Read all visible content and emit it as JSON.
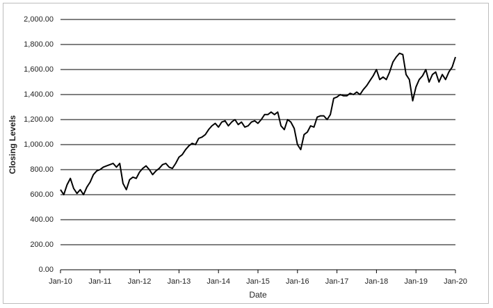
{
  "chart_data": {
    "type": "line",
    "title": "",
    "xlabel": "Date",
    "ylabel": "Closing Levels",
    "ylim": [
      0,
      2000
    ],
    "yticks": [
      "0.00",
      "200.00",
      "400.00",
      "600.00",
      "800.00",
      "1,000.00",
      "1,200.00",
      "1,400.00",
      "1,600.00",
      "1,800.00",
      "2,000.00"
    ],
    "xlim": [
      "2010-01",
      "2020-01"
    ],
    "xticks": [
      "Jan-10",
      "Jan-11",
      "Jan-12",
      "Jan-13",
      "Jan-14",
      "Jan-15",
      "Jan-16",
      "Jan-17",
      "Jan-18",
      "Jan-19",
      "Jan-20"
    ],
    "grid": "horizontal",
    "legend": "none",
    "line_color": "#000000",
    "series": [
      {
        "x": [
          "2010-01",
          "2010-02",
          "2010-03",
          "2010-04",
          "2010-05",
          "2010-06",
          "2010-07",
          "2010-08",
          "2010-09",
          "2010-10",
          "2010-11",
          "2010-12",
          "2011-01",
          "2011-02",
          "2011-03",
          "2011-04",
          "2011-05",
          "2011-06",
          "2011-07",
          "2011-08",
          "2011-09",
          "2011-10",
          "2011-11",
          "2011-12",
          "2012-01",
          "2012-02",
          "2012-03",
          "2012-04",
          "2012-05",
          "2012-06",
          "2012-07",
          "2012-08",
          "2012-09",
          "2012-10",
          "2012-11",
          "2012-12",
          "2013-01",
          "2013-02",
          "2013-03",
          "2013-04",
          "2013-05",
          "2013-06",
          "2013-07",
          "2013-08",
          "2013-09",
          "2013-10",
          "2013-11",
          "2013-12",
          "2014-01",
          "2014-02",
          "2014-03",
          "2014-04",
          "2014-05",
          "2014-06",
          "2014-07",
          "2014-08",
          "2014-09",
          "2014-10",
          "2014-11",
          "2014-12",
          "2015-01",
          "2015-02",
          "2015-03",
          "2015-04",
          "2015-05",
          "2015-06",
          "2015-07",
          "2015-08",
          "2015-09",
          "2015-10",
          "2015-11",
          "2015-12",
          "2016-01",
          "2016-02",
          "2016-03",
          "2016-04",
          "2016-05",
          "2016-06",
          "2016-07",
          "2016-08",
          "2016-09",
          "2016-10",
          "2016-11",
          "2016-12",
          "2017-01",
          "2017-02",
          "2017-03",
          "2017-04",
          "2017-05",
          "2017-06",
          "2017-07",
          "2017-08",
          "2017-09",
          "2017-10",
          "2017-11",
          "2017-12",
          "2018-01",
          "2018-02",
          "2018-03",
          "2018-04",
          "2018-05",
          "2018-06",
          "2018-07",
          "2018-08",
          "2018-09",
          "2018-10",
          "2018-11",
          "2018-12",
          "2019-01",
          "2019-02",
          "2019-03",
          "2019-04",
          "2019-05",
          "2019-06",
          "2019-07",
          "2019-08",
          "2019-09",
          "2019-10",
          "2019-11",
          "2019-12",
          "2020-01"
        ],
        "y": [
          640,
          600,
          680,
          730,
          650,
          610,
          640,
          600,
          660,
          700,
          760,
          790,
          800,
          820,
          830,
          840,
          850,
          820,
          850,
          690,
          640,
          720,
          740,
          730,
          780,
          810,
          830,
          800,
          760,
          790,
          810,
          840,
          850,
          820,
          810,
          850,
          900,
          920,
          960,
          990,
          1010,
          1000,
          1050,
          1060,
          1080,
          1120,
          1150,
          1170,
          1140,
          1180,
          1190,
          1150,
          1180,
          1200,
          1160,
          1180,
          1140,
          1150,
          1180,
          1190,
          1170,
          1200,
          1240,
          1240,
          1260,
          1240,
          1260,
          1150,
          1120,
          1200,
          1180,
          1130,
          1000,
          960,
          1080,
          1100,
          1150,
          1140,
          1220,
          1230,
          1230,
          1200,
          1240,
          1370,
          1380,
          1400,
          1390,
          1390,
          1410,
          1400,
          1420,
          1400,
          1440,
          1470,
          1510,
          1550,
          1600,
          1520,
          1540,
          1520,
          1580,
          1660,
          1700,
          1730,
          1720,
          1560,
          1520,
          1350,
          1460,
          1520,
          1550,
          1600,
          1500,
          1560,
          1580,
          1500,
          1560,
          1520,
          1580,
          1620,
          1700
        ]
      }
    ]
  }
}
